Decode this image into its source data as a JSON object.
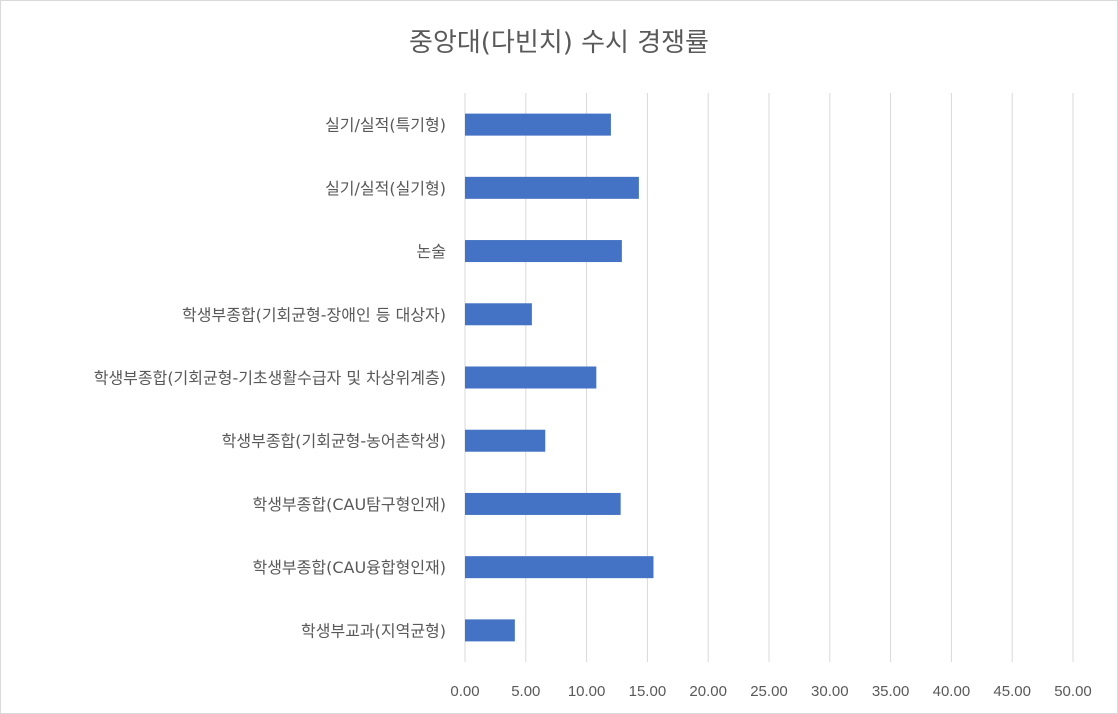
{
  "chart_data": {
    "type": "bar",
    "orientation": "horizontal",
    "title": "중앙대(다빈치) 수시 경쟁률",
    "categories": [
      "실기/실적(특기형)",
      "실기/실적(실기형)",
      "논술",
      "학생부종합(기회균형-장애인 등 대상자)",
      "학생부종합(기회균형-기초생활수급자 및 차상위계층)",
      "학생부종합(기회균형-농어촌학생)",
      "학생부종합(CAU탐구형인재)",
      "학생부종합(CAU융합형인재)",
      "학생부교과(지역균형)"
    ],
    "values": [
      12.0,
      14.3,
      12.9,
      5.5,
      10.8,
      6.6,
      12.8,
      15.5,
      4.1
    ],
    "xlim": [
      0,
      50
    ],
    "xticks": [
      "0.00",
      "5.00",
      "10.00",
      "15.00",
      "20.00",
      "25.00",
      "30.00",
      "35.00",
      "40.00",
      "45.00",
      "50.00"
    ],
    "xlabel": "",
    "ylabel": "",
    "grid": "vertical",
    "legend": "none",
    "bar_color": "#4472C4"
  }
}
